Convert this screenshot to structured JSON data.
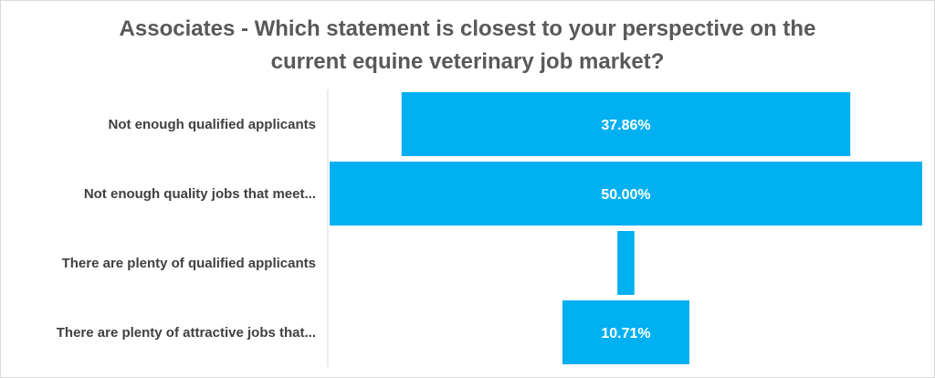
{
  "chart_data": {
    "type": "bar",
    "orientation": "horizontal-funnel",
    "title_lines": [
      "Associates - Which statement is closest to your perspective on the",
      "current equine veterinary job market?"
    ],
    "categories": [
      "Not enough qualified applicants",
      "Not enough quality jobs that meet...",
      "There are plenty of qualified applicants",
      "There are plenty of attractive jobs that..."
    ],
    "values": [
      37.86,
      50.0,
      1.43,
      10.71
    ],
    "data_labels": [
      "37.86%",
      "50.00%",
      "",
      "10.71%"
    ],
    "xlim": [
      0,
      50
    ],
    "legend": "none",
    "grid": false,
    "colors": {
      "bar": "#00b0f0",
      "label_text": "#ffffff",
      "category_text": "#404040",
      "axis": "#d9d9d9"
    }
  }
}
